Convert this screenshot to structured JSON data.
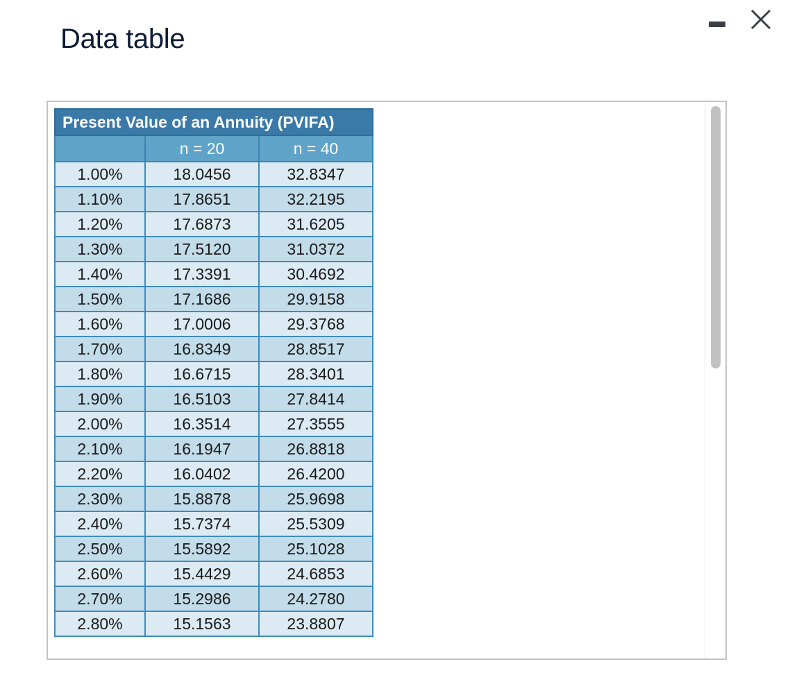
{
  "dialog": {
    "title": "Data table"
  },
  "window_controls": {
    "minimize_icon": "minimize-icon",
    "close_icon": "close-icon",
    "close_glyph_color": "#3b3e45"
  },
  "table": {
    "caption": "Present Value of an Annuity (PVIFA)",
    "columns": [
      "",
      "n = 20",
      "n = 40"
    ],
    "rows": [
      [
        "1.00%",
        "18.0456",
        "32.8347"
      ],
      [
        "1.10%",
        "17.8651",
        "32.2195"
      ],
      [
        "1.20%",
        "17.6873",
        "31.6205"
      ],
      [
        "1.30%",
        "17.5120",
        "31.0372"
      ],
      [
        "1.40%",
        "17.3391",
        "30.4692"
      ],
      [
        "1.50%",
        "17.1686",
        "29.9158"
      ],
      [
        "1.60%",
        "17.0006",
        "29.3768"
      ],
      [
        "1.70%",
        "16.8349",
        "28.8517"
      ],
      [
        "1.80%",
        "16.6715",
        "28.3401"
      ],
      [
        "1.90%",
        "16.5103",
        "27.8414"
      ],
      [
        "2.00%",
        "16.3514",
        "27.3555"
      ],
      [
        "2.10%",
        "16.1947",
        "26.8818"
      ],
      [
        "2.20%",
        "16.0402",
        "26.4200"
      ],
      [
        "2.30%",
        "15.8878",
        "25.9698"
      ],
      [
        "2.40%",
        "15.7374",
        "25.5309"
      ],
      [
        "2.50%",
        "15.5892",
        "25.1028"
      ],
      [
        "2.60%",
        "15.4429",
        "24.6853"
      ],
      [
        "2.70%",
        "15.2986",
        "24.2780"
      ],
      [
        "2.80%",
        "15.1563",
        "23.8807"
      ]
    ]
  },
  "colors": {
    "caption_bg": "#3a79a8",
    "header_bg": "#5fa3c8",
    "row_light": "#dcebf3",
    "row_dark": "#c3dcea"
  }
}
